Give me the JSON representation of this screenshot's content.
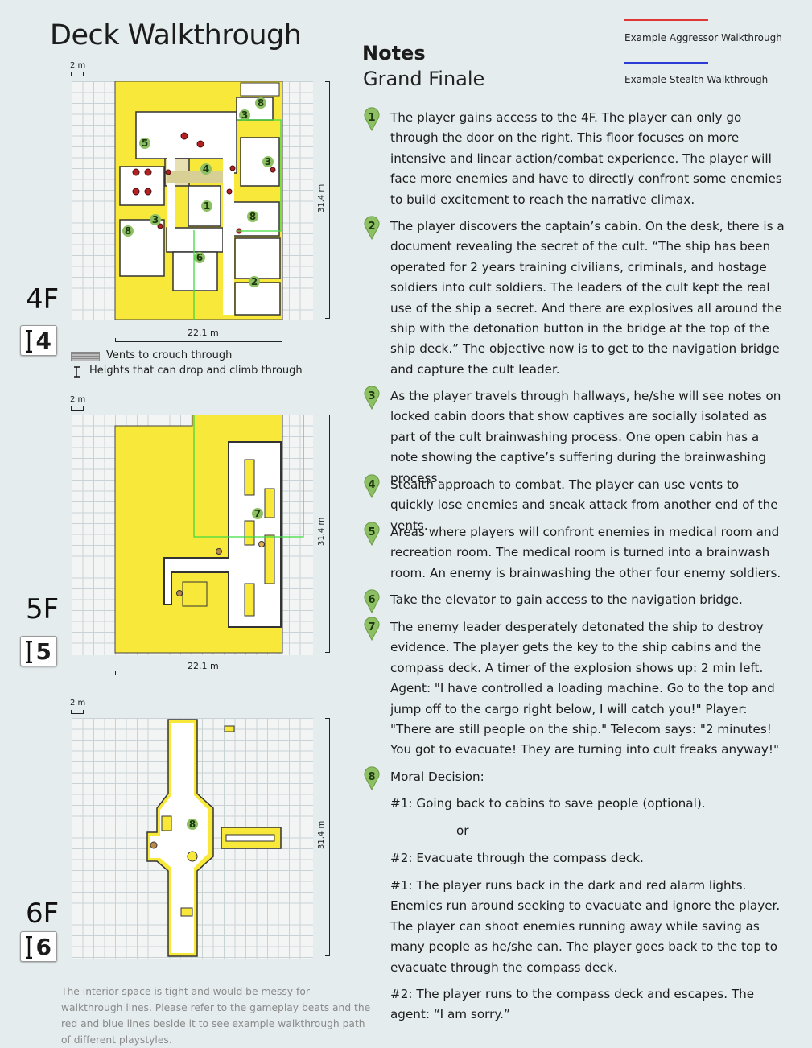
{
  "header": {
    "title": "Deck Walkthrough",
    "legend": [
      {
        "label": "Example Aggressor Walkthrough",
        "color": "#e03535"
      },
      {
        "label": "Example Stealth Walkthrough",
        "color": "#2b3bd6"
      }
    ]
  },
  "notes": {
    "heading": "Notes",
    "subheading": "Grand Finale",
    "beats": [
      {
        "num": "1",
        "text": "The player gains access to the 4F. The player can only go through the door on the right. This floor focuses on more intensive and linear action/combat experience. The player will face more enemies and have to directly confront some enemies to build excitement to reach the narrative climax."
      },
      {
        "num": "2",
        "text": "The player discovers the captain’s cabin. On the desk, there is a document revealing the secret of the cult. “The ship has been operated for 2 years training civilians, criminals, and hostage soldiers into cult soldiers. The leaders of the cult kept the real use of the ship a secret. And there are explosives all around the ship with the detonation button in the bridge at the top of the ship deck.” The objective now is to get to the navigation bridge and capture the cult leader."
      },
      {
        "num": "3",
        "text": "As the player travels through hallways, he/she will see notes on locked cabin doors that show captives are socially isolated as part of the cult brainwashing process. One open cabin has a note showing the captive’s suffering during the brainwashing process."
      },
      {
        "num": "4",
        "text": "Stealth approach to combat. The player can use vents to quickly lose enemies and sneak attack from another end of the vents."
      },
      {
        "num": "5",
        "text": "Areas where players will confront enemies in medical room and recreation room. The medical room is turned into a brainwash room. An enemy is brainwashing the other four enemy soldiers."
      },
      {
        "num": "6",
        "text": "Take the elevator to gain access to the navigation bridge."
      },
      {
        "num": "7",
        "text": "The enemy leader desperately detonated the ship to destroy evidence. The player gets the key to the ship cabins and the compass deck. A timer of the explosion shows up: 2 min left. Agent: \"I have controlled a loading machine. Go to the top and jump off to the cargo right below, I will catch you!\" Player: \"There are still people on the ship.\" Telecom says: \"2 minutes! You got to evacuate! They are turning into cult freaks anyway!\""
      },
      {
        "num": "8",
        "text": "Moral Decision:"
      }
    ],
    "moral": {
      "option1": "#1: Going back to cabins to save people (optional).",
      "or": "or",
      "option2": "#2: Evacuate through the compass deck.",
      "outcome1": "#1: The player runs back in the dark and red alarm lights. Enemies run around seeking to evacuate and ignore the player. The player can shoot enemies running away while saving as many people as he/she can. The player goes back to the top to evacuate through the compass deck.",
      "outcome2": "#2: The player runs to the compass deck and escapes. The agent: “I am sorry.”"
    }
  },
  "floors": [
    {
      "label": "4F",
      "badge": "4",
      "scale": "2 m",
      "height": "31.4 m",
      "width": "22.1 m"
    },
    {
      "label": "5F",
      "badge": "5",
      "scale": "2 m",
      "height": "31.4 m",
      "width": "22.1 m"
    },
    {
      "label": "6F",
      "badge": "6",
      "scale": "2 m",
      "height": "31.4 m"
    }
  ],
  "map_legend": {
    "vents": "Vents to crouch through",
    "heights": "Heights that can drop and climb through"
  },
  "footnote": "The interior space is tight and would be messy for walkthrough lines. Please refer to the gameplay beats and the red and blue lines beside it to see example walkthrough path of different playstyles.",
  "colors": {
    "floor_yellow": "#f7e83a",
    "route_green": "#3fdc3f",
    "pin_green": "#8dc063",
    "background": "#e4ecee"
  }
}
